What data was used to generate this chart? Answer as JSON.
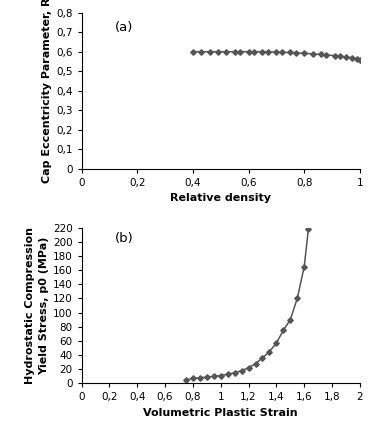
{
  "panel_a": {
    "label": "(a)",
    "xlabel": "Relative density",
    "ylabel": "Cap Eccentricity Parameter, R",
    "xlim": [
      0,
      1.0
    ],
    "ylim": [
      0,
      0.8
    ],
    "xticks": [
      0,
      0.2,
      0.4,
      0.6,
      0.8,
      1.0
    ],
    "yticks": [
      0,
      0.1,
      0.2,
      0.3,
      0.4,
      0.5,
      0.6,
      0.7,
      0.8
    ],
    "x": [
      0.4,
      0.43,
      0.46,
      0.49,
      0.52,
      0.55,
      0.57,
      0.6,
      0.62,
      0.65,
      0.67,
      0.7,
      0.72,
      0.75,
      0.77,
      0.8,
      0.83,
      0.86,
      0.88,
      0.91,
      0.93,
      0.95,
      0.97,
      0.99,
      1.0
    ],
    "y": [
      0.6,
      0.6,
      0.6,
      0.6,
      0.6,
      0.6,
      0.6,
      0.6,
      0.6,
      0.6,
      0.599,
      0.598,
      0.597,
      0.596,
      0.594,
      0.592,
      0.589,
      0.586,
      0.583,
      0.58,
      0.577,
      0.573,
      0.569,
      0.564,
      0.558
    ]
  },
  "panel_b": {
    "label": "(b)",
    "xlabel": "Volumetric Plastic Strain",
    "ylabel_line1": "Hydrostatic Compression",
    "ylabel_line2": "Yield Stress, p",
    "ylabel_line2b": "0",
    "ylabel_line2c": " (MPa)",
    "xlim": [
      0,
      2.0
    ],
    "ylim": [
      0,
      220
    ],
    "xticks": [
      0,
      0.2,
      0.4,
      0.6,
      0.8,
      1.0,
      1.2,
      1.4,
      1.6,
      1.8,
      2.0
    ],
    "yticks": [
      0,
      20,
      40,
      60,
      80,
      100,
      120,
      140,
      160,
      180,
      200,
      220
    ],
    "x": [
      0.75,
      0.8,
      0.85,
      0.9,
      0.95,
      1.0,
      1.05,
      1.1,
      1.15,
      1.2,
      1.25,
      1.3,
      1.35,
      1.4,
      1.45,
      1.5,
      1.55,
      1.6,
      1.63
    ],
    "y": [
      5,
      7,
      8,
      9,
      10,
      11,
      13,
      15,
      18,
      22,
      28,
      36,
      45,
      57,
      75,
      90,
      120,
      165,
      218
    ]
  },
  "line_color": "#555555",
  "marker": "D",
  "markersize": 2.8,
  "linewidth": 1.1,
  "background_color": "#ffffff",
  "tick_label_fontsize": 7.5,
  "axis_label_fontsize": 8,
  "panel_label_fontsize": 9.5
}
